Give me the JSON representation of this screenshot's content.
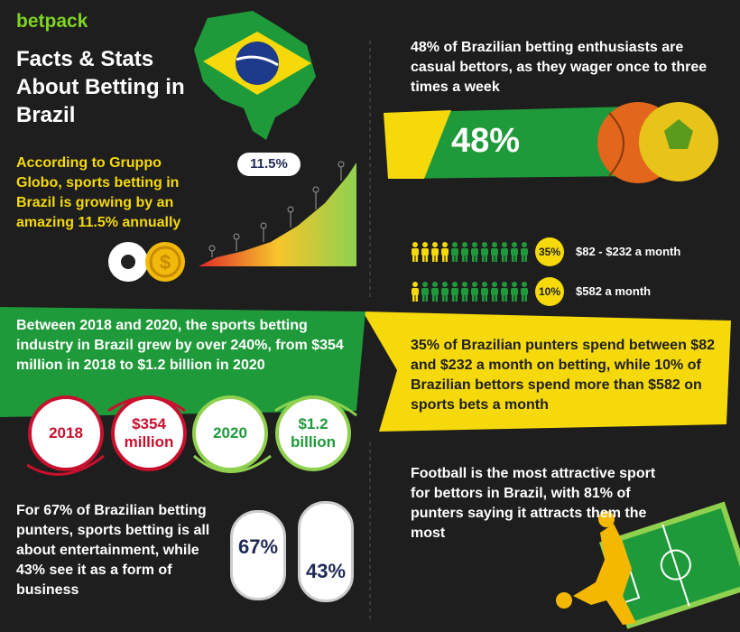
{
  "logo": "betpack",
  "title": "Facts & Stats About Betting in Brazil",
  "growth": {
    "text": "According to Gruppo Globo, sports betting in Brazil is growing by an amazing 11.5% annually",
    "badge": "11.5%"
  },
  "casual": {
    "text": "48% of Brazilian betting enthusiasts are casual bettors, as they wager once to three times a week",
    "badge": "48%"
  },
  "spending": {
    "rows": [
      {
        "badge": "35%",
        "label": "$82 - $232 a month"
      },
      {
        "badge": "10%",
        "label": "$582 a month"
      }
    ],
    "text": "35% of Brazilian punters spend between $82 and $232 a month on betting, while 10% of Brazilian bettors spend more than $582 on sports bets a month"
  },
  "industry": {
    "text": "Between 2018 and 2020, the sports betting industry in Brazil grew by over 240%, from $354 million in 2018 to $1.2 billion in 2020",
    "circles": [
      "2018",
      "$354 million",
      "2020",
      "$1.2 billion"
    ]
  },
  "entertainment": {
    "text": "For 67% of Brazilian betting punters, sports betting is all about entertainment, while 43% see it as a form of business",
    "badges": [
      "67%",
      "43%"
    ]
  },
  "football": {
    "text": "Football is the most attractive sport for bettors in Brazil, with 81% of punters saying it attracts them the most"
  }
}
